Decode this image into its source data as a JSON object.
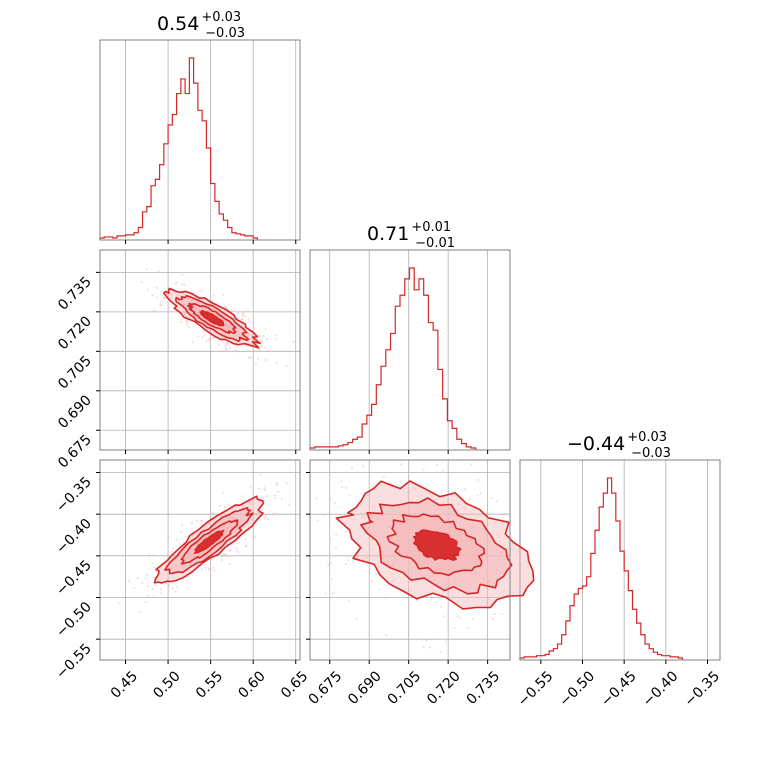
{
  "colors": {
    "series": "#d62728",
    "fill": "#f4b9ba",
    "grid": "#b0b0b0",
    "axis": "#808080"
  },
  "chart_data": {
    "type": "corner",
    "grid": true,
    "parameters": [
      {
        "title_value": "0.54",
        "title_plus": "+0.03",
        "title_minus": "−0.03",
        "range": [
          0.42,
          0.655
        ],
        "tick_values": [
          0.45,
          0.5,
          0.55,
          0.6,
          0.65
        ],
        "tick_labels": [
          "0.45",
          "0.50",
          "0.55",
          "0.60",
          "0.65"
        ]
      },
      {
        "title_value": "0.71",
        "title_plus": "+0.01",
        "title_minus": "−0.01",
        "range": [
          0.6675,
          0.7435
        ],
        "tick_values": [
          0.675,
          0.69,
          0.705,
          0.72,
          0.735
        ],
        "tick_labels": [
          "0.675",
          "0.690",
          "0.705",
          "0.720",
          "0.735"
        ]
      },
      {
        "title_value": "−0.44",
        "title_plus": "+0.03",
        "title_minus": "−0.03",
        "range": [
          -0.575,
          -0.335
        ],
        "tick_values": [
          -0.55,
          -0.5,
          -0.45,
          -0.4,
          -0.35
        ],
        "tick_labels": [
          "−0.55",
          "−0.50",
          "−0.45",
          "−0.40",
          "−0.35"
        ]
      }
    ],
    "histograms": [
      {
        "param": 0,
        "bin_width": 0.005,
        "start": 0.42,
        "counts": [
          0,
          1,
          1,
          0,
          2,
          2,
          3,
          3,
          5,
          10,
          25,
          30,
          50,
          56,
          70,
          90,
          108,
          118,
          138,
          152,
          138,
          172,
          148,
          122,
          112,
          86,
          52,
          35,
          23,
          17,
          10,
          5,
          4,
          3,
          2,
          2,
          0
        ]
      },
      {
        "param": 1,
        "bin_width": 0.0018,
        "start": 0.6675,
        "counts": [
          0,
          1,
          1,
          1,
          1,
          1,
          2,
          3,
          5,
          8,
          10,
          22,
          30,
          40,
          58,
          75,
          90,
          105,
          130,
          140,
          155,
          165,
          145,
          155,
          140,
          115,
          108,
          72,
          45,
          25,
          18,
          8,
          4,
          1,
          0
        ]
      },
      {
        "param": 2,
        "bin_width": 0.005,
        "start": -0.575,
        "counts": [
          0,
          1,
          1,
          1,
          2,
          2,
          3,
          6,
          8,
          12,
          20,
          32,
          45,
          55,
          60,
          62,
          70,
          90,
          110,
          130,
          142,
          155,
          142,
          118,
          92,
          75,
          58,
          42,
          30,
          20,
          12,
          8,
          5,
          3,
          2,
          2,
          1,
          1,
          0
        ]
      }
    ],
    "pairs": [
      {
        "x_param": 0,
        "y_param": 1,
        "center": [
          0.552,
          0.7175
        ],
        "axis_angle_deg": 150,
        "sigma_major": 0.03,
        "sigma_minor": 0.008
      },
      {
        "x_param": 0,
        "y_param": 2,
        "center": [
          0.548,
          -0.433
        ],
        "axis_angle_deg": 37,
        "sigma_major": 0.04,
        "sigma_minor": 0.009
      },
      {
        "x_param": 1,
        "y_param": 2,
        "center": [
          0.7155,
          -0.437
        ],
        "axis_angle_deg": 160,
        "sigma_major": 0.018,
        "sigma_minor": 0.01
      }
    ]
  }
}
